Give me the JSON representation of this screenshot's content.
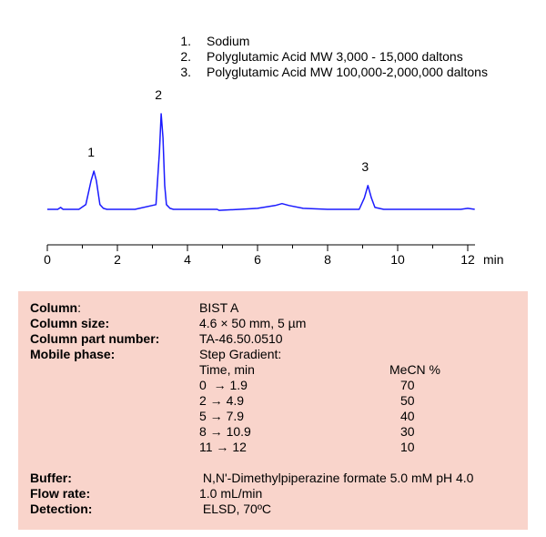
{
  "chart_data": {
    "type": "line",
    "title": "",
    "xlabel": "min",
    "ylabel": "",
    "xlim": [
      0,
      12.2
    ],
    "xticks": [
      0,
      2,
      4,
      6,
      8,
      10,
      12
    ],
    "grid": false,
    "legend_position": "top-right",
    "series": [
      {
        "x": [
          0,
          0.3,
          0.38,
          0.45,
          0.9,
          1.1,
          1.25,
          1.33,
          1.4,
          1.5,
          1.6,
          1.7,
          2.5,
          3.1,
          3.2,
          3.25,
          3.3,
          3.35,
          3.4,
          3.5,
          3.6,
          4.2,
          4.85,
          4.9,
          5.5,
          6.0,
          6.5,
          6.7,
          6.9,
          7.3,
          8.0,
          8.9,
          9.05,
          9.15,
          9.25,
          9.35,
          9.6,
          10.5,
          11.8,
          12.0,
          12.2
        ],
        "y": [
          0.0,
          0.0,
          0.02,
          0.0,
          0.0,
          0.05,
          0.3,
          0.4,
          0.3,
          0.05,
          0.01,
          0.0,
          0.0,
          0.05,
          0.6,
          1.0,
          0.75,
          0.25,
          0.05,
          0.01,
          0.0,
          0.0,
          0.0,
          -0.01,
          0.0,
          0.01,
          0.04,
          0.06,
          0.04,
          0.01,
          0.0,
          0.0,
          0.12,
          0.25,
          0.12,
          0.02,
          0.0,
          0.0,
          0.0,
          0.01,
          0.0
        ]
      }
    ],
    "peak_labels": [
      {
        "label": "1",
        "x": 1.33,
        "y": 0.4
      },
      {
        "label": "2",
        "x": 3.25,
        "y": 1.0
      },
      {
        "label": "3",
        "x": 9.15,
        "y": 0.25
      }
    ],
    "legend": [
      {
        "num": "1.",
        "text": "Sodium"
      },
      {
        "num": "2.",
        "text": "Polyglutamic Acid MW  3,000 - 15,000 daltons"
      },
      {
        "num": "3.",
        "text": "Polyglutamic Acid MW 100,000-2,000,000 daltons"
      }
    ],
    "line_color": "#1a1aff"
  },
  "conditions": {
    "column_label": "Column",
    "column_colon": ":",
    "column_value": "BIST A",
    "size_label": "Column size:",
    "size_value": "4.6 × 50 mm, 5 µm",
    "part_label": "Column part number:",
    "part_value": "TA-46.50.0510",
    "mobile_label": "Mobile phase:",
    "mobile_value": "Step Gradient:",
    "gradient_header_time": "Time, min",
    "gradient_header_mecn": "MeCN %",
    "gradient": [
      {
        "time": "0  → 1.9",
        "mecn": "70"
      },
      {
        "time": "2 → 4.9",
        "mecn": "50"
      },
      {
        "time": "5 → 7.9",
        "mecn": "40"
      },
      {
        "time": "8 → 10.9",
        "mecn": "30"
      },
      {
        "time": "11 → 12",
        "mecn": "10"
      }
    ],
    "buffer_label": "Buffer:",
    "buffer_value": " N,N'-Dimethylpiperazine formate 5.0 mM pH 4.0",
    "flow_label": "Flow rate:",
    "flow_value": "1.0 mL/min",
    "detection_label": "Detection:",
    "detection_value": " ELSD, 70ºC"
  }
}
